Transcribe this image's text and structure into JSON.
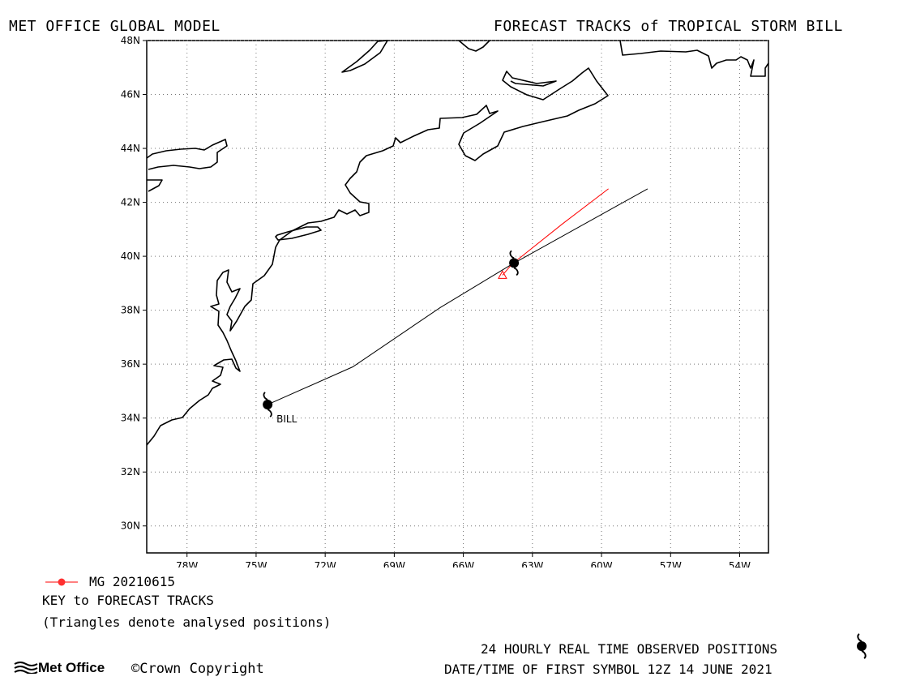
{
  "header": {
    "left": "MET OFFICE GLOBAL MODEL",
    "right": "FORECAST TRACKS of TROPICAL STORM BILL"
  },
  "map": {
    "lat_range": [
      29,
      48
    ],
    "lon_range": [
      -79.75,
      -52.75
    ],
    "lat_ticks": [
      "48N",
      "46N",
      "44N",
      "42N",
      "40N",
      "38N",
      "36N",
      "34N",
      "32N",
      "30N"
    ],
    "lon_ticks": [
      "78W",
      "75W",
      "72W",
      "69W",
      "66W",
      "63W",
      "60W",
      "57W",
      "54W"
    ],
    "gridlines": "dotted",
    "colors": {
      "observed_track": "#000000",
      "forecast_track": "#ff0000",
      "coast": "#000000"
    }
  },
  "storm": {
    "label": "BILL",
    "observed_track": [
      [
        -74.5,
        34.5
      ],
      [
        -70.8,
        35.9
      ],
      [
        -67,
        38.1
      ],
      [
        -63.9,
        39.7
      ],
      [
        -58,
        42.5
      ]
    ],
    "forecast_track": [
      [
        -64.3,
        39.3
      ],
      [
        -63.9,
        39.7
      ],
      [
        -61.7,
        41.2
      ],
      [
        -59.7,
        42.5
      ]
    ],
    "analysed_triangle": [
      -64.3,
      39.3
    ],
    "storm_symbols": [
      [
        -74.5,
        34.5
      ],
      [
        -63.8,
        39.75
      ]
    ]
  },
  "key": {
    "model_label": "MG 20210615",
    "title": "KEY to FORECAST TRACKS",
    "note": "(Triangles denote analysed positions)"
  },
  "footer": {
    "observed": "24 HOURLY REAL TIME OBSERVED POSITIONS",
    "first_symbol": "DATE/TIME OF FIRST SYMBOL 12Z 14 JUNE 2021",
    "logo": "Met Office",
    "copyright": "©Crown Copyright"
  }
}
